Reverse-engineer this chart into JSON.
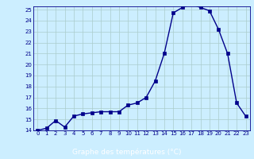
{
  "x": [
    0,
    1,
    2,
    3,
    4,
    5,
    6,
    7,
    8,
    9,
    10,
    11,
    12,
    13,
    14,
    15,
    16,
    17,
    18,
    19,
    20,
    21,
    22,
    23
  ],
  "y": [
    14.0,
    14.2,
    14.9,
    14.3,
    15.3,
    15.5,
    15.6,
    15.7,
    15.7,
    15.7,
    16.3,
    16.5,
    17.0,
    18.5,
    21.0,
    24.7,
    25.2,
    25.5,
    25.2,
    24.9,
    23.2,
    21.0,
    16.5,
    15.3
  ],
  "line_color": "#00008b",
  "marker_color": "#00008b",
  "bg_color": "#cceeff",
  "grid_color": "#aacccc",
  "tick_color": "#00008b",
  "xlabel": "Graphe des températures (°C)",
  "xlabel_bar_color": "#00008b",
  "xlabel_text_color": "#ffffff",
  "ylim_min": 14,
  "ylim_max": 25,
  "xlim_min": -0.5,
  "xlim_max": 23.5,
  "yticks": [
    14,
    15,
    16,
    17,
    18,
    19,
    20,
    21,
    22,
    23,
    24,
    25
  ],
  "xticks": [
    0,
    1,
    2,
    3,
    4,
    5,
    6,
    7,
    8,
    9,
    10,
    11,
    12,
    13,
    14,
    15,
    16,
    17,
    18,
    19,
    20,
    21,
    22,
    23
  ],
  "tick_fontsize": 5,
  "xlabel_fontsize": 6.5,
  "linewidth": 1.0,
  "markersize": 2.5
}
